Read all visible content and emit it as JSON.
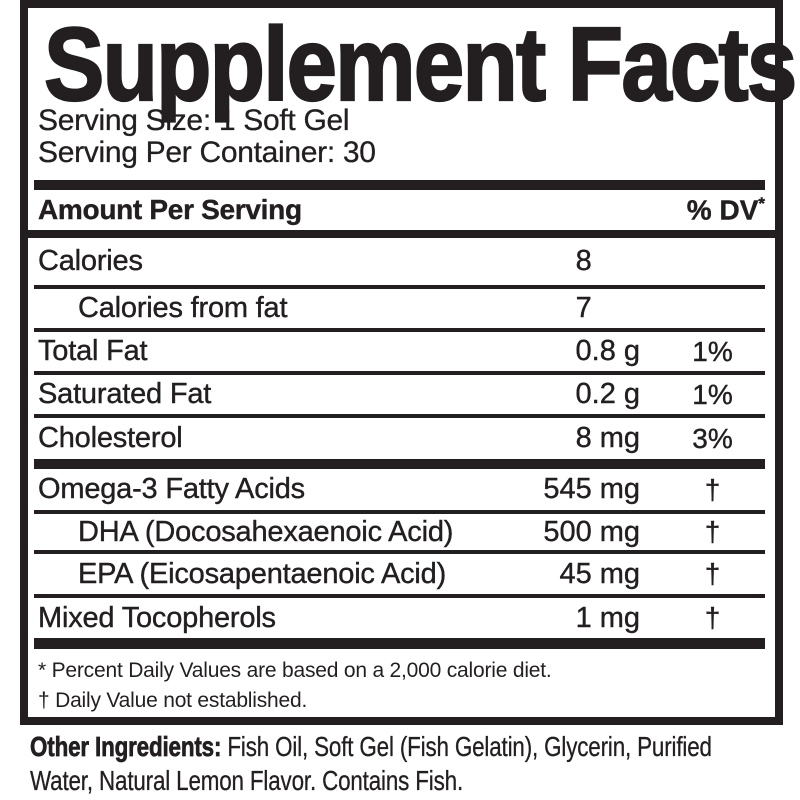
{
  "colors": {
    "ink": "#231f20",
    "background": "#ffffff"
  },
  "label": {
    "title": "Supplement Facts",
    "serving_size": "Serving Size: 1 Soft Gel",
    "servings_per_container": "Serving Per Container: 30",
    "column_header": {
      "left": "Amount Per Serving",
      "right": "% DV",
      "asterisk": "*"
    }
  },
  "table": {
    "rows": [
      {
        "name": "Calories",
        "indent": false,
        "amount": "8",
        "unit": "",
        "dv": "",
        "sep": "none"
      },
      {
        "name": "Calories from fat",
        "indent": true,
        "amount": "7",
        "unit": "",
        "dv": "",
        "sep": "line"
      },
      {
        "name": "Total Fat",
        "indent": false,
        "amount": "0.8",
        "unit": "g",
        "dv": "1%",
        "sep": "line"
      },
      {
        "name": "Saturated Fat",
        "indent": false,
        "amount": "0.2",
        "unit": "g",
        "dv": "1%",
        "sep": "line"
      },
      {
        "name": "Cholesterol",
        "indent": false,
        "amount": "8",
        "unit": "mg",
        "dv": "3%",
        "sep": "line"
      },
      {
        "name": "Omega-3 Fatty Acids",
        "indent": false,
        "amount": "545",
        "unit": "mg",
        "dv": "†",
        "sep": "bar"
      },
      {
        "name": "DHA (Docosahexaenoic Acid)",
        "indent": true,
        "amount": "500",
        "unit": "mg",
        "dv": "†",
        "sep": "line"
      },
      {
        "name": "EPA (Eicosapentaenoic Acid)",
        "indent": true,
        "amount": "45",
        "unit": "mg",
        "dv": "†",
        "sep": "line"
      },
      {
        "name": "Mixed Tocopherols",
        "indent": false,
        "amount": "1",
        "unit": "mg",
        "dv": "†",
        "sep": "line"
      }
    ]
  },
  "footnotes": [
    "* Percent Daily Values are based on a 2,000 calorie diet.",
    "† Daily Value not established."
  ],
  "other_ingredients": {
    "label": "Other Ingredients:",
    "text": "Fish Oil, Soft Gel (Fish Gelatin), Glycerin, Purified Water, Natural Lemon Flavor. Contains Fish."
  }
}
